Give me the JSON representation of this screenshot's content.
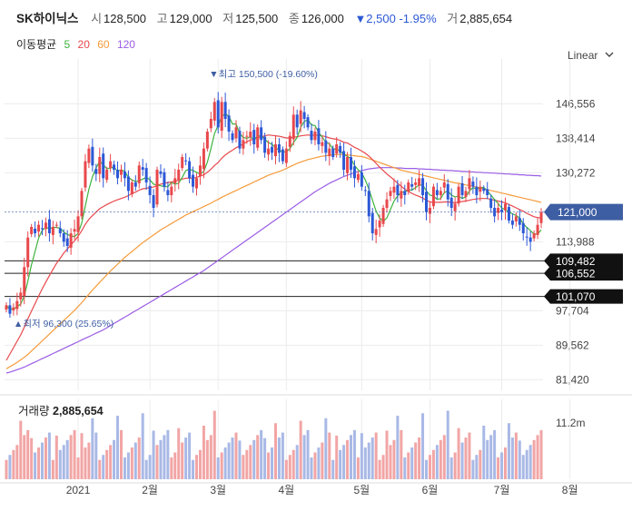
{
  "header": {
    "name": "SK하이닉스",
    "open_label": "시",
    "open": "128,500",
    "high_label": "고",
    "high": "129,000",
    "low_label": "저",
    "low": "125,500",
    "close_label": "종",
    "close": "126,000",
    "change": "▼2,500 -1.95%",
    "volume_label": "거",
    "volume": "2,885,654"
  },
  "ma_legend": {
    "label": "이동평균",
    "items": [
      "5",
      "20",
      "60",
      "120"
    ]
  },
  "scale_mode": "Linear",
  "volume_panel": {
    "label": "거래량",
    "value": "2,885,654",
    "axis_tick": "11.2m"
  },
  "colors": {
    "up": "#e8484c",
    "down": "#2c58d6",
    "ma5": "#3db33d",
    "ma20": "#e8484c",
    "ma60": "#f59b3a",
    "ma120": "#9b5de5",
    "vol": "#f2a5a5",
    "price_tag": "#3e5ea3"
  },
  "chart_data": {
    "type": "candlestick",
    "ylim": [
      80000,
      155000
    ],
    "y_ticks": [
      "146,556",
      "138,414",
      "130,272",
      "113,988",
      "97,704",
      "89,562",
      "81,420"
    ],
    "y_tick_values": [
      146556,
      138414,
      130272,
      113988,
      97704,
      89562,
      81420
    ],
    "x_ticks": [
      "2021",
      "2월",
      "3월",
      "4월",
      "5월",
      "6월",
      "7월",
      "8월"
    ],
    "x_tick_days": [
      20,
      40,
      59,
      78,
      99,
      118,
      138,
      157
    ],
    "current_price": "121,000",
    "current_value": 121000,
    "levels": [
      {
        "label": "109,482",
        "value": 109482
      },
      {
        "label": "106,552",
        "value": 106552
      },
      {
        "label": "101,070",
        "value": 101070
      }
    ],
    "max_annotation": "최고 150,500 (-19.60%)",
    "max_value": 150500,
    "max_day": 58,
    "min_annotation": "최저 96,300 (25.65%)",
    "min_value": 96300,
    "min_day": 1,
    "closes": [
      99000,
      97000,
      98500,
      100000,
      102000,
      108000,
      115000,
      117500,
      116000,
      118000,
      117000,
      118500,
      116000,
      117500,
      118000,
      116000,
      114000,
      113000,
      116000,
      117000,
      120000,
      126000,
      133000,
      136000,
      132000,
      130000,
      134000,
      129000,
      131000,
      133000,
      131000,
      129000,
      131000,
      129000,
      126000,
      128000,
      127000,
      132000,
      131000,
      128000,
      125000,
      122000,
      131000,
      130000,
      127000,
      125000,
      127000,
      129000,
      131000,
      134000,
      133000,
      129000,
      127000,
      129000,
      132000,
      136000,
      140000,
      143000,
      147000,
      141000,
      147000,
      143000,
      140000,
      138000,
      141000,
      136000,
      138000,
      139000,
      140000,
      137000,
      141000,
      138000,
      135000,
      136000,
      135000,
      137000,
      135000,
      133000,
      136000,
      139000,
      144000,
      141000,
      145000,
      143000,
      141000,
      138000,
      140000,
      137000,
      137500,
      135000,
      136000,
      134000,
      137000,
      135000,
      131000,
      134000,
      131000,
      129000,
      130000,
      127000,
      126000,
      120000,
      116000,
      117000,
      119000,
      122000,
      124000,
      126000,
      127000,
      125000,
      126000,
      125000,
      128000,
      127000,
      128000,
      129000,
      125000,
      121000,
      122000,
      127000,
      125000,
      126000,
      128000,
      124000,
      122000,
      123000,
      127000,
      125000,
      126000,
      129000,
      127000,
      125000,
      127000,
      126000,
      125000,
      122000,
      120000,
      122000,
      121000,
      123000,
      119000,
      118000,
      120000,
      118000,
      116000,
      115000,
      114000,
      116000,
      118000,
      121000
    ],
    "ma20": [
      86000,
      87500,
      89000,
      90500,
      92000,
      93800,
      95800,
      97600,
      99400,
      101200,
      102900,
      104500,
      106000,
      107500,
      108900,
      110100,
      111300,
      112300,
      113300,
      114200,
      115300,
      116600,
      118100,
      119300,
      120200,
      121000,
      121800,
      122300,
      122800,
      123200,
      123600,
      123900,
      124200,
      124500,
      124900,
      125400,
      125700,
      126200,
      126500,
      126600,
      126800,
      126900,
      127300,
      127600,
      127800,
      128000,
      128100,
      128300,
      128500,
      128800,
      129000,
      129000,
      129000,
      129200,
      129500,
      129800,
      130400,
      131100,
      132000,
      132700,
      133700,
      134500,
      135100,
      135600,
      136200,
      136600,
      137100,
      137600,
      138000,
      138200,
      138500,
      138800,
      139000,
      139200,
      139100,
      139000,
      138900,
      138700,
      138500,
      138500,
      138700,
      138800,
      139000,
      139100,
      139200,
      139100,
      139200,
      139100,
      139000,
      138800,
      138500,
      138300,
      138200,
      137900,
      137500,
      137300,
      136800,
      136300,
      135900,
      135400,
      134900,
      134200,
      133400,
      132500,
      131600,
      130800,
      130000,
      129300,
      128600,
      127800,
      127100,
      126400,
      125900,
      125400,
      125000,
      124700,
      124300,
      123800,
      123400,
      123300,
      123300,
      123300,
      123400,
      123400,
      123300,
      123200,
      123400,
      123500,
      123600,
      123800,
      124000,
      124100,
      124200,
      124200,
      124200,
      124000,
      123800,
      123600,
      123400,
      123200,
      122800,
      122400,
      122000,
      121600,
      121200,
      120700,
      120300,
      119900,
      119700,
      119600
    ],
    "ma60": [
      84000,
      84500,
      85000,
      85500,
      86100,
      86700,
      87400,
      88200,
      89000,
      89800,
      90600,
      91400,
      92200,
      93000,
      93800,
      94600,
      95400,
      96200,
      97000,
      97800,
      98700,
      99600,
      100600,
      101600,
      102600,
      103500,
      104400,
      105300,
      106200,
      107100,
      107900,
      108700,
      109500,
      110300,
      111000,
      111700,
      112400,
      113100,
      113800,
      114400,
      115000,
      115600,
      116200,
      116800,
      117300,
      117800,
      118300,
      118800,
      119300,
      119800,
      120300,
      120700,
      121100,
      121500,
      121900,
      122300,
      122700,
      123100,
      123600,
      124000,
      124500,
      124900,
      125300,
      125700,
      126100,
      126500,
      126900,
      127300,
      127700,
      128100,
      128500,
      128900,
      129300,
      129700,
      130000,
      130300,
      130600,
      130900,
      131300,
      131700,
      132100,
      132500,
      132800,
      133100,
      133400,
      133600,
      133800,
      134000,
      134200,
      134300,
      134400,
      134500,
      134600,
      134600,
      134600,
      134500,
      134400,
      134300,
      134200,
      134100,
      133900,
      133600,
      133300,
      133000,
      132700,
      132400,
      132100,
      131800,
      131500,
      131200,
      130900,
      130700,
      130500,
      130300,
      130100,
      129900,
      129700,
      129500,
      129300,
      129100,
      128900,
      128700,
      128500,
      128300,
      128100,
      127900,
      127800,
      127600,
      127400,
      127300,
      127100,
      126900,
      126700,
      126500,
      126300,
      126100,
      125900,
      125700,
      125500,
      125300,
      125100,
      124900,
      124700,
      124500,
      124300,
      124100,
      123900,
      123700,
      123500,
      123300
    ],
    "ma120": [
      83000,
      83200,
      83500,
      83800,
      84100,
      84400,
      84800,
      85200,
      85600,
      86000,
      86400,
      86800,
      87200,
      87600,
      88000,
      88400,
      88800,
      89200,
      89600,
      90000,
      90400,
      90800,
      91200,
      91600,
      92000,
      92400,
      92800,
      93200,
      93700,
      94200,
      94700,
      95200,
      95700,
      96200,
      96700,
      97200,
      97700,
      98200,
      98700,
      99200,
      99700,
      100200,
      100700,
      101200,
      101700,
      102200,
      102700,
      103200,
      103700,
      104200,
      104700,
      105200,
      105700,
      106200,
      106700,
      107200,
      107800,
      108400,
      109000,
      109600,
      110200,
      110800,
      111400,
      112000,
      112600,
      113200,
      113800,
      114400,
      115000,
      115600,
      116200,
      116800,
      117400,
      118000,
      118600,
      119200,
      119800,
      120400,
      121000,
      121600,
      122200,
      122800,
      123400,
      124000,
      124600,
      125200,
      125800,
      126300,
      126800,
      127300,
      127800,
      128200,
      128600,
      129000,
      129400,
      129700,
      130000,
      130300,
      130600,
      130800,
      131000,
      131200,
      131300,
      131400,
      131500,
      131500,
      131500,
      131500,
      131500,
      131400,
      131400,
      131300,
      131300,
      131300,
      131300,
      131200,
      131200,
      131100,
      131100,
      131000,
      131000,
      130900,
      130900,
      130800,
      130800,
      130700,
      130700,
      130600,
      130600,
      130500,
      130500,
      130400,
      130400,
      130300,
      130300,
      130200,
      130200,
      130100,
      130100,
      130000,
      130000,
      129900,
      129900,
      129800,
      129800,
      129700,
      129700,
      129600,
      129600,
      129500
    ],
    "volume_max": 12000000
  }
}
